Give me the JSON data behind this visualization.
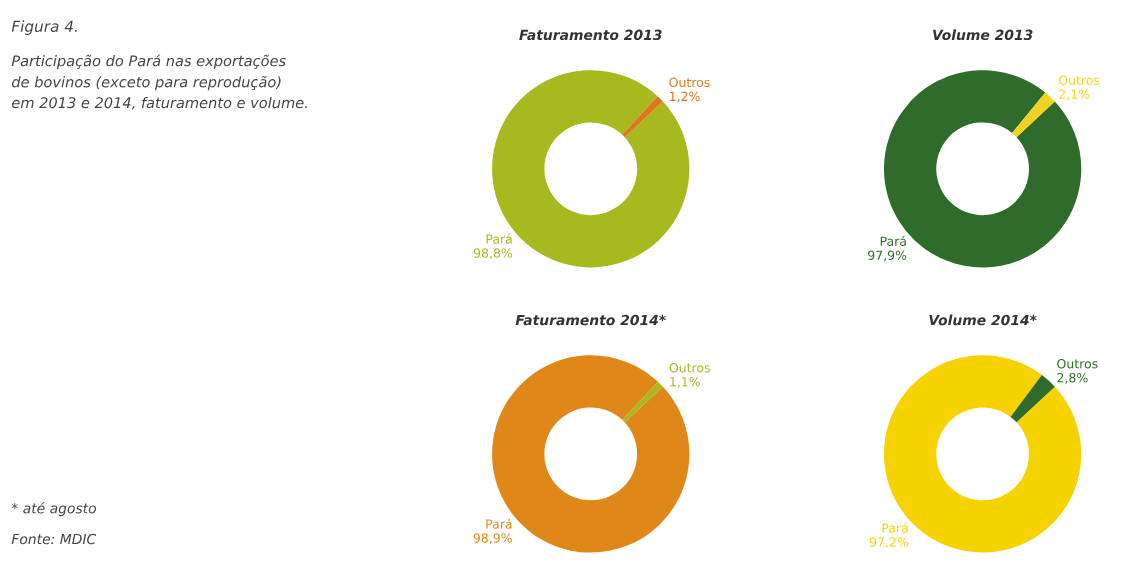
{
  "chart_data": [
    {
      "type": "other",
      "title": "Figura 4.",
      "subtitle": "Participação do Pará nas exportações\nde bovinos (exceto para reprodução)\nem 2013 e 2014, faturamento e volume.",
      "annotations": [
        "* até agosto",
        "Fonte: MDIC"
      ]
    },
    {
      "type": "donut",
      "title": "Faturamento 2013",
      "categories": [
        "Pará",
        "Outros"
      ],
      "values": [
        98.8,
        1.2
      ],
      "value_labels": [
        "98,8%",
        "1,2%"
      ],
      "colors": [
        "#a6b91e",
        "#e0761c"
      ]
    },
    {
      "type": "donut",
      "title": "Volume 2013",
      "categories": [
        "Pará",
        "Outros"
      ],
      "values": [
        97.9,
        2.1
      ],
      "value_labels": [
        "97,9%",
        "2,1%"
      ],
      "colors": [
        "#2f6b2b",
        "#f0d321"
      ]
    },
    {
      "type": "donut",
      "title": "Faturamento 2014*",
      "categories": [
        "Pará",
        "Outros"
      ],
      "values": [
        98.9,
        1.1
      ],
      "value_labels": [
        "98,9%",
        "1,1%"
      ],
      "colors": [
        "#e0871a",
        "#a6b91e"
      ]
    },
    {
      "type": "donut",
      "title": "Volume 2014*",
      "categories": [
        "Pará",
        "Outros"
      ],
      "values": [
        97.2,
        2.8
      ],
      "value_labels": [
        "97,2%",
        "2,8%"
      ],
      "colors": [
        "#f5d200",
        "#2f6b2b"
      ]
    }
  ]
}
